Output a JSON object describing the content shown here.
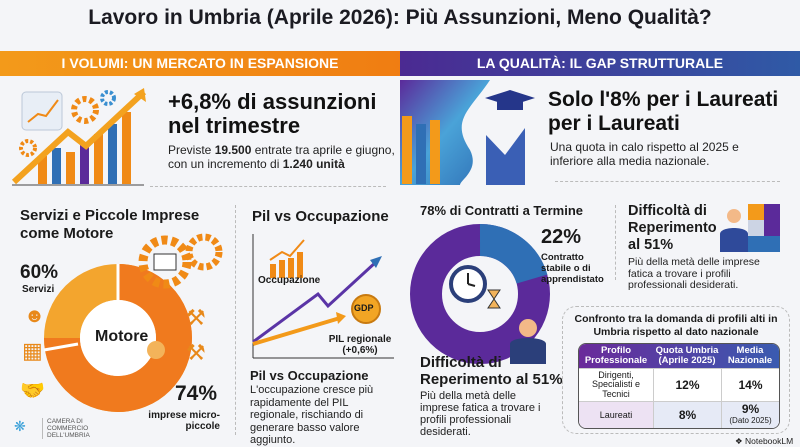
{
  "title": "Lavoro in Umbria (Aprile 2026): Più Assunzioni, Meno Qualità?",
  "left": {
    "bar": "I VOLUMI: UN MERCATO IN ESPANSIONE",
    "headline": "+6,8% di assunzioni nel trimestre",
    "desc_a": "Previste ",
    "desc_b": "19.500",
    "desc_c": " entrate tra aprile e giugno, con un incremento di ",
    "desc_d": "1.240 unità",
    ".": ".",
    "motore_title": "Servizi e Piccole Imprese come Motore",
    "servizi_pct": "60%",
    "servizi_label": "Servizi",
    "center": "Motore",
    "imprese_pct": "74%",
    "imprese_label": "imprese micro-piccole",
    "pil_title": "Pil vs Occupazione",
    "occ_label": "Occupazione",
    "gdp_badge": "GDP",
    "pil_label": "PIL regionale (+0,6%)",
    "pil_sub": "Pil vs Occupazione",
    "pil_desc": "L'occupazione cresce più rapidamente del PIL regionale, rischiando di generare basso valore aggiunto.",
    "logo": "CAMERA DI COMMERCIO DELL'UMBRIA"
  },
  "right": {
    "bar": "LA QUALITÀ: IL GAP STRUTTURALE",
    "headline": "Solo l'8% per i Laureati per i Laureati",
    "desc": "Una quota in calo rispetto al 2025 e inferiore alla media nazionale.",
    "contratti_title": "78% di Contratti a Termine",
    "stabile_pct": "22%",
    "stabile_label": "Contratto stabile o di apprendistato",
    "diff_title": "Difficoltà di Reperimento al 51%",
    "diff_desc": "Più della metà delle imprese fatica a trovare i profili professionali desiderati.",
    "diff2_title": "Difficoltà di Reperimento al 51%",
    "diff2_desc": "Più della metà delle imprese fatica a trovare i profili professionali desiderati.",
    "table_title": "Confronto tra la domanda di profili alti in Umbria rispetto al dato nazionale",
    "table": {
      "headers": [
        "Profilo Professionale",
        "Quota Umbria (Aprile 2025)",
        "Media Nazionale"
      ],
      "rows": [
        [
          "Dirigenti, Specialisti e Tecnici",
          "12%",
          "14%",
          ""
        ],
        [
          "Laureati",
          "8%",
          "9%",
          "(Dato 2025)"
        ]
      ]
    }
  },
  "footer": "NotebookLM",
  "colors": {
    "orange": "#f28a16",
    "purple": "#5b2a9a",
    "blue": "#2f6fb5"
  },
  "donut_left": {
    "servizi": 60,
    "imprese": 74
  },
  "donut_right": {
    "termine": 78,
    "stabile": 22
  }
}
